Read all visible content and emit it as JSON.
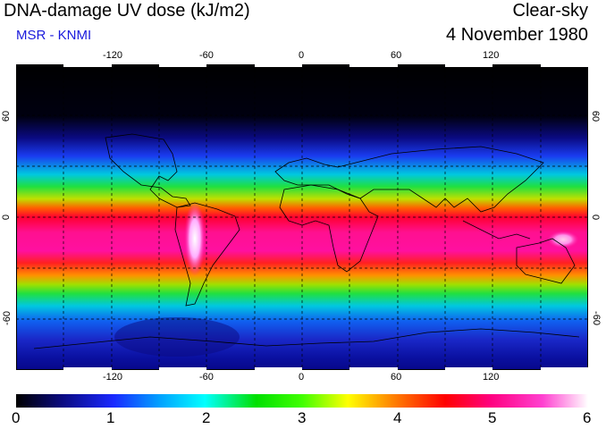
{
  "header": {
    "title": "DNA-damage UV dose (kJ/m2)",
    "subtitle": "MSR - KNMI",
    "mode": "Clear-sky",
    "date": "4 November 1980"
  },
  "map": {
    "lon_ticks": [
      "-120",
      "-60",
      "0",
      "60",
      "120"
    ],
    "lat_ticks_left": [
      "60",
      "0",
      "-60"
    ],
    "lat_ticks_right": [
      "60",
      "0",
      "-60"
    ]
  },
  "colorbar": {
    "labels": [
      "0",
      "1",
      "2",
      "3",
      "4",
      "5",
      "6"
    ],
    "min": 0,
    "max": 6
  }
}
